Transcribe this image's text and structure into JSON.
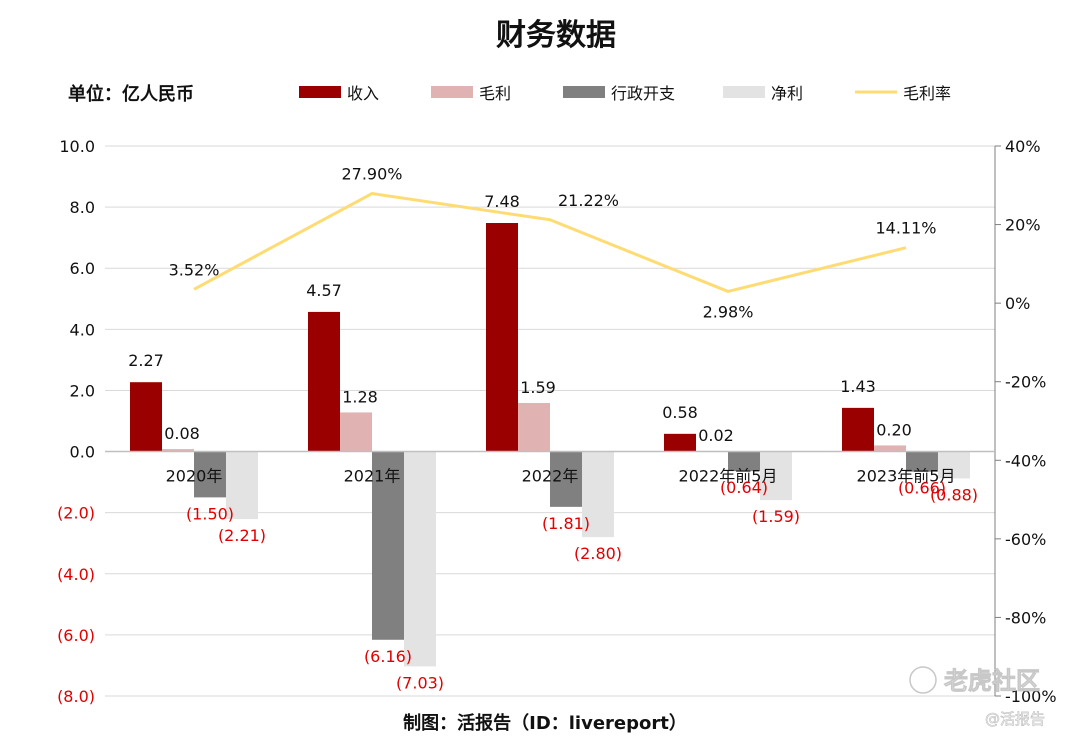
{
  "title": "财务数据",
  "unit_label": "单位：亿人民币",
  "footer": "制图：活报告（ID：livereport）",
  "watermark": {
    "brand": "老虎社区",
    "handle": "@活报告"
  },
  "colors": {
    "revenue": "#9b0000",
    "gross_profit": "#e0b2b2",
    "admin_expense": "#808080",
    "net_profit": "#e3e3e3",
    "gross_margin": "#ffdc73",
    "negative_label": "#e00000"
  },
  "chart_data": {
    "type": "bar",
    "title": "财务数据",
    "categories": [
      "2020年",
      "2021年",
      "2022年",
      "2022年前5月",
      "2023年前5月"
    ],
    "y_left": {
      "min": -8,
      "max": 10,
      "step": 2,
      "ticks": [
        "10.0",
        "8.0",
        "6.0",
        "4.0",
        "2.0",
        "0.0",
        "(2.0)",
        "(4.0)",
        "(6.0)",
        "(8.0)"
      ]
    },
    "y_right": {
      "min": -100,
      "max": 40,
      "step": 20,
      "ticks": [
        "40%",
        "20%",
        "0%",
        "-20%",
        "-40%",
        "-60%",
        "-80%",
        "-100%"
      ]
    },
    "legend_position": "top",
    "grid": true,
    "series": [
      {
        "name": "收入",
        "type": "bar",
        "axis": "left",
        "values": [
          2.27,
          4.57,
          7.48,
          0.58,
          1.43
        ],
        "labels": [
          "2.27",
          "4.57",
          "7.48",
          "0.58",
          "1.43"
        ]
      },
      {
        "name": "毛利",
        "type": "bar",
        "axis": "left",
        "values": [
          0.08,
          1.28,
          1.59,
          0.02,
          0.2
        ],
        "labels": [
          "0.08",
          "1.28",
          "1.59",
          "0.02",
          "0.20"
        ]
      },
      {
        "name": "行政开支",
        "type": "bar",
        "axis": "left",
        "values": [
          -1.5,
          -6.16,
          -1.81,
          -0.64,
          -0.66
        ],
        "labels": [
          "(1.50)",
          "(6.16)",
          "(1.81)",
          "(0.64)",
          "(0.66)"
        ]
      },
      {
        "name": "净利",
        "type": "bar",
        "axis": "left",
        "values": [
          -2.21,
          -7.03,
          -2.8,
          -1.59,
          -0.88
        ],
        "labels": [
          "(2.21)",
          "(7.03)",
          "(2.80)",
          "(1.59)",
          "(0.88)"
        ]
      },
      {
        "name": "毛利率",
        "type": "line",
        "axis": "right",
        "values": [
          3.52,
          27.9,
          21.22,
          2.98,
          14.11
        ],
        "labels": [
          "3.52%",
          "27.90%",
          "21.22%",
          "2.98%",
          "14.11%"
        ]
      }
    ]
  }
}
